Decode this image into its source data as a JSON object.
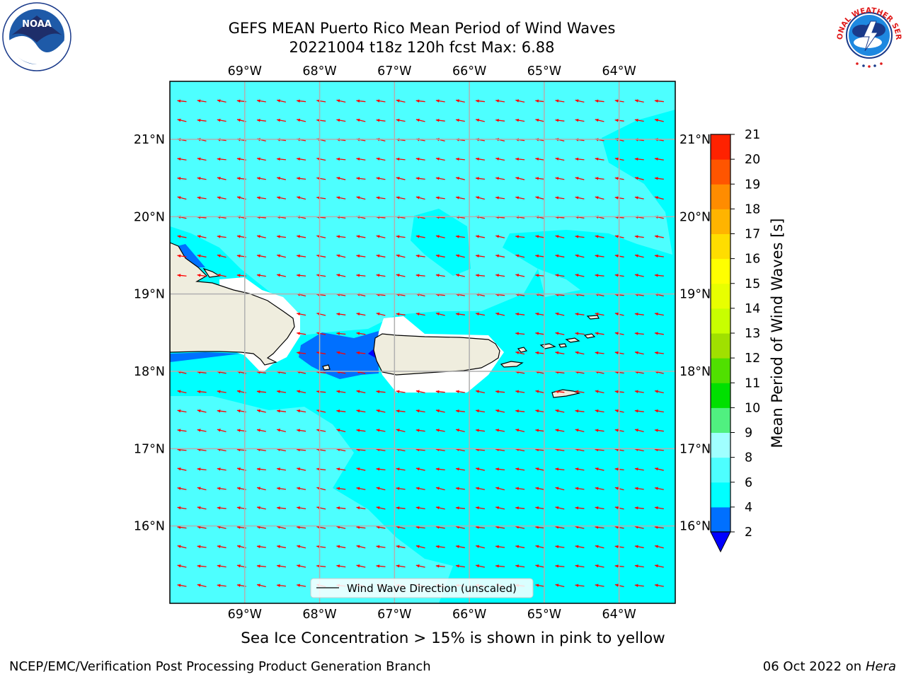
{
  "title_line1": "GEFS MEAN Puerto Rico Mean Period of Wind Waves",
  "title_line2": "20221004 t18z 120h fcst   Max: 6.88",
  "footer_left": "NCEP/EMC/Verification Post Processing Product Generation Branch",
  "footer_right_date": "06 Oct 2022 on ",
  "footer_right_host": "Hera",
  "sea_ice_note": "Sea Ice Concentration > 15% is shown in pink to yellow",
  "legend_label": "Wind Wave Direction (unscaled)",
  "colorbar_label": "Mean Period of Wind Waves [s]",
  "logos": {
    "left": "NOAA",
    "right": "NATIONAL WEATHER SERVICE"
  },
  "map": {
    "lon_range": [
      -70,
      -63.25
    ],
    "lat_range": [
      15,
      21.75
    ],
    "lon_ticks": [
      {
        "value": -69,
        "label": "69°W"
      },
      {
        "value": -68,
        "label": "68°W"
      },
      {
        "value": -67,
        "label": "67°W"
      },
      {
        "value": -66,
        "label": "66°W"
      },
      {
        "value": -65,
        "label": "65°W"
      },
      {
        "value": -64,
        "label": "64°W"
      }
    ],
    "lat_ticks": [
      {
        "value": 21,
        "label": "21°N"
      },
      {
        "value": 20,
        "label": "20°N"
      },
      {
        "value": 19,
        "label": "19°N"
      },
      {
        "value": 18,
        "label": "18°N"
      },
      {
        "value": 17,
        "label": "17°N"
      },
      {
        "value": 16,
        "label": "16°N"
      }
    ],
    "ocean_color": "#00ffff",
    "land_color": "#efedde",
    "arrow_color": "#ff0000"
  },
  "colorbar": {
    "levels": [
      2,
      4,
      6,
      8,
      9,
      10,
      11,
      12,
      13,
      14,
      15,
      16,
      17,
      18,
      19,
      20,
      21
    ],
    "tick_labels": [
      "21",
      "20",
      "19",
      "18",
      "17",
      "16",
      "15",
      "14",
      "13",
      "12",
      "11",
      "10",
      "9",
      "8",
      "6",
      "4",
      "2"
    ],
    "colors": [
      "#0070ff",
      "#00ffff",
      "#4dffff",
      "#a0ffff",
      "#50f080",
      "#00e000",
      "#50e000",
      "#a0e000",
      "#c8ff00",
      "#e8ff00",
      "#ffff00",
      "#ffdd00",
      "#ffb400",
      "#ff8c00",
      "#ff5500",
      "#ff2200"
    ],
    "under_color": "#0000ff",
    "over_color": "#ff0000"
  }
}
